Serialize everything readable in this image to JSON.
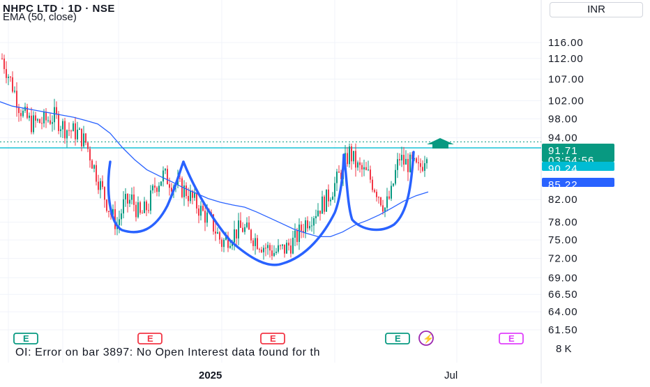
{
  "header": {
    "title": "NHPC LTD · 1D · NSE",
    "indicator": "EMA (50, close)",
    "currency": "INR"
  },
  "footer": {
    "error": "OI: Error on bar 3897: No Open Interest data found for th",
    "x_labels": [
      "2025",
      "Jul"
    ]
  },
  "price_badges": {
    "last_price": "91.71",
    "countdown": "03:54:56",
    "level": "90.24",
    "ema": "85.22",
    "volume_label": "8 K"
  },
  "colors": {
    "up": "#089981",
    "down": "#f23645",
    "ema": "#2962ff",
    "level": "#00bcd4",
    "drawing": "#2962ff",
    "arrow": "#089981"
  },
  "event_markers": [
    "E",
    "E",
    "E",
    "E",
    "⚡",
    "E"
  ],
  "chart_data": {
    "type": "candlestick",
    "title": "NHPC LTD · 1D · NSE",
    "y_axis_ticks": [
      116.0,
      112.0,
      107.0,
      102.0,
      98.0,
      94.0,
      82.0,
      78.0,
      75.0,
      72.0,
      69.0,
      66.5,
      64.0,
      61.5
    ],
    "y_axis_tick_labels": [
      "116.00",
      "112.00",
      "107.00",
      "102.00",
      "98.00",
      "94.00",
      "82.00",
      "78.00",
      "75.00",
      "72.00",
      "69.00",
      "66.50",
      "64.00",
      "61.50"
    ],
    "scale": "log",
    "ylim": [
      61.5,
      116.0
    ],
    "x_labels": [
      "2025",
      "Jul"
    ],
    "horizontal_level": 90.24,
    "last_close": 91.71,
    "ema_last": 85.22,
    "ema_series": [
      104,
      103,
      102.5,
      102,
      101.5,
      101,
      100.5,
      99.8,
      99,
      97,
      94,
      91.5,
      89.5,
      88.3,
      87.2,
      86,
      85,
      84,
      83.3,
      82.8,
      82.4,
      81.5,
      80.5,
      79.5,
      78.5,
      77.8,
      77.2,
      77.2,
      78,
      79.2,
      80,
      81,
      82.2,
      83.5,
      84.5,
      85.22
    ],
    "candles": {
      "anchors": [
        [
          0,
          112
        ],
        [
          3,
          108
        ],
        [
          6,
          104
        ],
        [
          8,
          101
        ],
        [
          10,
          99
        ],
        [
          14,
          97
        ],
        [
          20,
          97.5
        ],
        [
          25,
          98.5
        ],
        [
          30,
          96
        ],
        [
          36,
          95
        ],
        [
          40,
          93
        ],
        [
          44,
          88
        ],
        [
          47,
          84.5
        ],
        [
          52,
          79.5
        ],
        [
          55,
          77.5
        ],
        [
          58,
          81
        ],
        [
          62,
          82
        ],
        [
          66,
          79
        ],
        [
          70,
          81
        ],
        [
          73,
          84.5
        ],
        [
          77,
          86.5
        ],
        [
          82,
          85
        ],
        [
          88,
          83.5
        ],
        [
          95,
          80
        ],
        [
          100,
          78
        ],
        [
          105,
          74.5
        ],
        [
          110,
          76
        ],
        [
          115,
          77
        ],
        [
          120,
          75.5
        ],
        [
          125,
          74
        ],
        [
          130,
          73
        ],
        [
          135,
          73.5
        ],
        [
          140,
          75
        ],
        [
          145,
          78
        ],
        [
          150,
          80
        ],
        [
          155,
          82
        ],
        [
          160,
          85.5
        ],
        [
          164,
          89
        ],
        [
          166,
          91
        ],
        [
          170,
          88
        ],
        [
          175,
          86.5
        ],
        [
          180,
          83
        ],
        [
          183,
          80.5
        ],
        [
          186,
          83
        ],
        [
          188,
          87
        ],
        [
          190,
          90
        ],
        [
          192,
          89
        ],
        [
          196,
          88.5
        ],
        [
          199,
          87.5
        ],
        [
          201,
          89
        ],
        [
          203,
          91.7
        ]
      ],
      "count": 204
    }
  }
}
